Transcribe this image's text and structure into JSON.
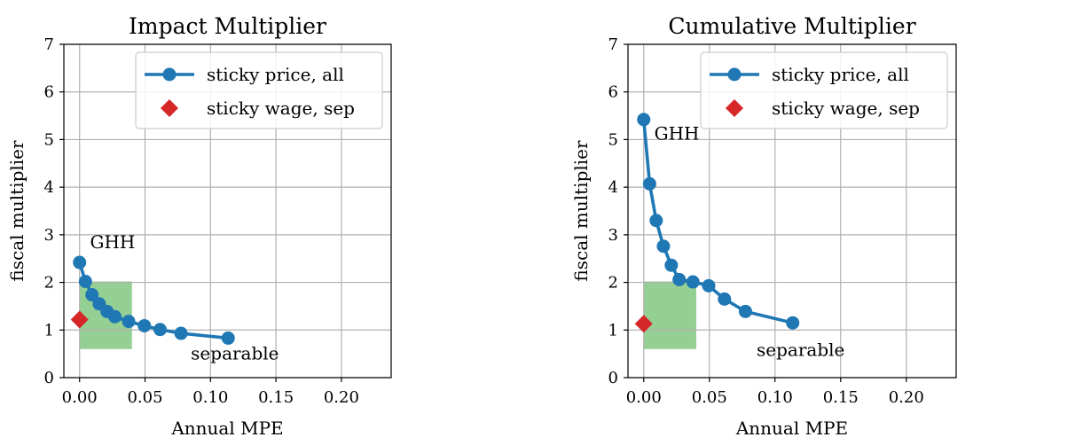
{
  "chart_data": [
    {
      "type": "line",
      "title": "Impact Multiplier",
      "xlabel": "Annual MPE",
      "ylabel": "fiscal multiplier",
      "xlim": [
        -0.012,
        0.238
      ],
      "ylim": [
        0,
        7
      ],
      "xticks": [
        "0.00",
        "0.05",
        "0.10",
        "0.15",
        "0.20"
      ],
      "xtick_values": [
        0,
        0.05,
        0.1,
        0.15,
        0.2
      ],
      "yticks": [
        "0",
        "1",
        "2",
        "3",
        "4",
        "5",
        "6",
        "7"
      ],
      "ytick_values": [
        0,
        1,
        2,
        3,
        4,
        5,
        6,
        7
      ],
      "grid": true,
      "legend_position": "top-right",
      "series": [
        {
          "name": "sticky price, all",
          "color": "#1f77b4",
          "marker": "circle",
          "x": [
            0.0,
            0.0045,
            0.0095,
            0.015,
            0.021,
            0.027,
            0.0375,
            0.0495,
            0.0615,
            0.0775,
            0.1135
          ],
          "y": [
            2.42,
            2.02,
            1.74,
            1.55,
            1.39,
            1.28,
            1.18,
            1.09,
            1.01,
            0.93,
            0.83
          ]
        },
        {
          "name": "sticky wage, sep",
          "color": "#d62728",
          "marker": "diamond",
          "x": [
            0.0
          ],
          "y": [
            1.22
          ]
        }
      ],
      "shaded_region": {
        "x": [
          0.0,
          0.04
        ],
        "y": [
          0.6,
          2.02
        ],
        "color": "#94cf94"
      },
      "annotations": [
        {
          "text": "GHH",
          "x": 0.008,
          "y": 2.72
        },
        {
          "text": "separable",
          "x": 0.085,
          "y": 0.38
        }
      ]
    },
    {
      "type": "line",
      "title": "Cumulative Multiplier",
      "xlabel": "Annual MPE",
      "ylabel": "fiscal multiplier",
      "xlim": [
        -0.012,
        0.238
      ],
      "ylim": [
        0,
        7
      ],
      "xticks": [
        "0.00",
        "0.05",
        "0.10",
        "0.15",
        "0.20"
      ],
      "xtick_values": [
        0,
        0.05,
        0.1,
        0.15,
        0.2
      ],
      "yticks": [
        "0",
        "1",
        "2",
        "3",
        "4",
        "5",
        "6",
        "7"
      ],
      "ytick_values": [
        0,
        1,
        2,
        3,
        4,
        5,
        6,
        7
      ],
      "grid": true,
      "legend_position": "top-right",
      "series": [
        {
          "name": "sticky price, all",
          "color": "#1f77b4",
          "marker": "circle",
          "x": [
            0.0,
            0.0045,
            0.0095,
            0.015,
            0.021,
            0.027,
            0.0375,
            0.0495,
            0.0615,
            0.0775,
            0.1135
          ],
          "y": [
            5.42,
            4.07,
            3.3,
            2.76,
            2.36,
            2.06,
            2.01,
            1.93,
            1.65,
            1.39,
            1.15
          ]
        },
        {
          "name": "sticky wage, sep",
          "color": "#d62728",
          "marker": "diamond",
          "x": [
            0.0
          ],
          "y": [
            1.13
          ]
        }
      ],
      "shaded_region": {
        "x": [
          0.0,
          0.04
        ],
        "y": [
          0.6,
          2.02
        ],
        "color": "#94cf94"
      },
      "annotations": [
        {
          "text": "GHH",
          "x": 0.008,
          "y": 5.0
        },
        {
          "text": "separable",
          "x": 0.086,
          "y": 0.46
        }
      ]
    }
  ]
}
